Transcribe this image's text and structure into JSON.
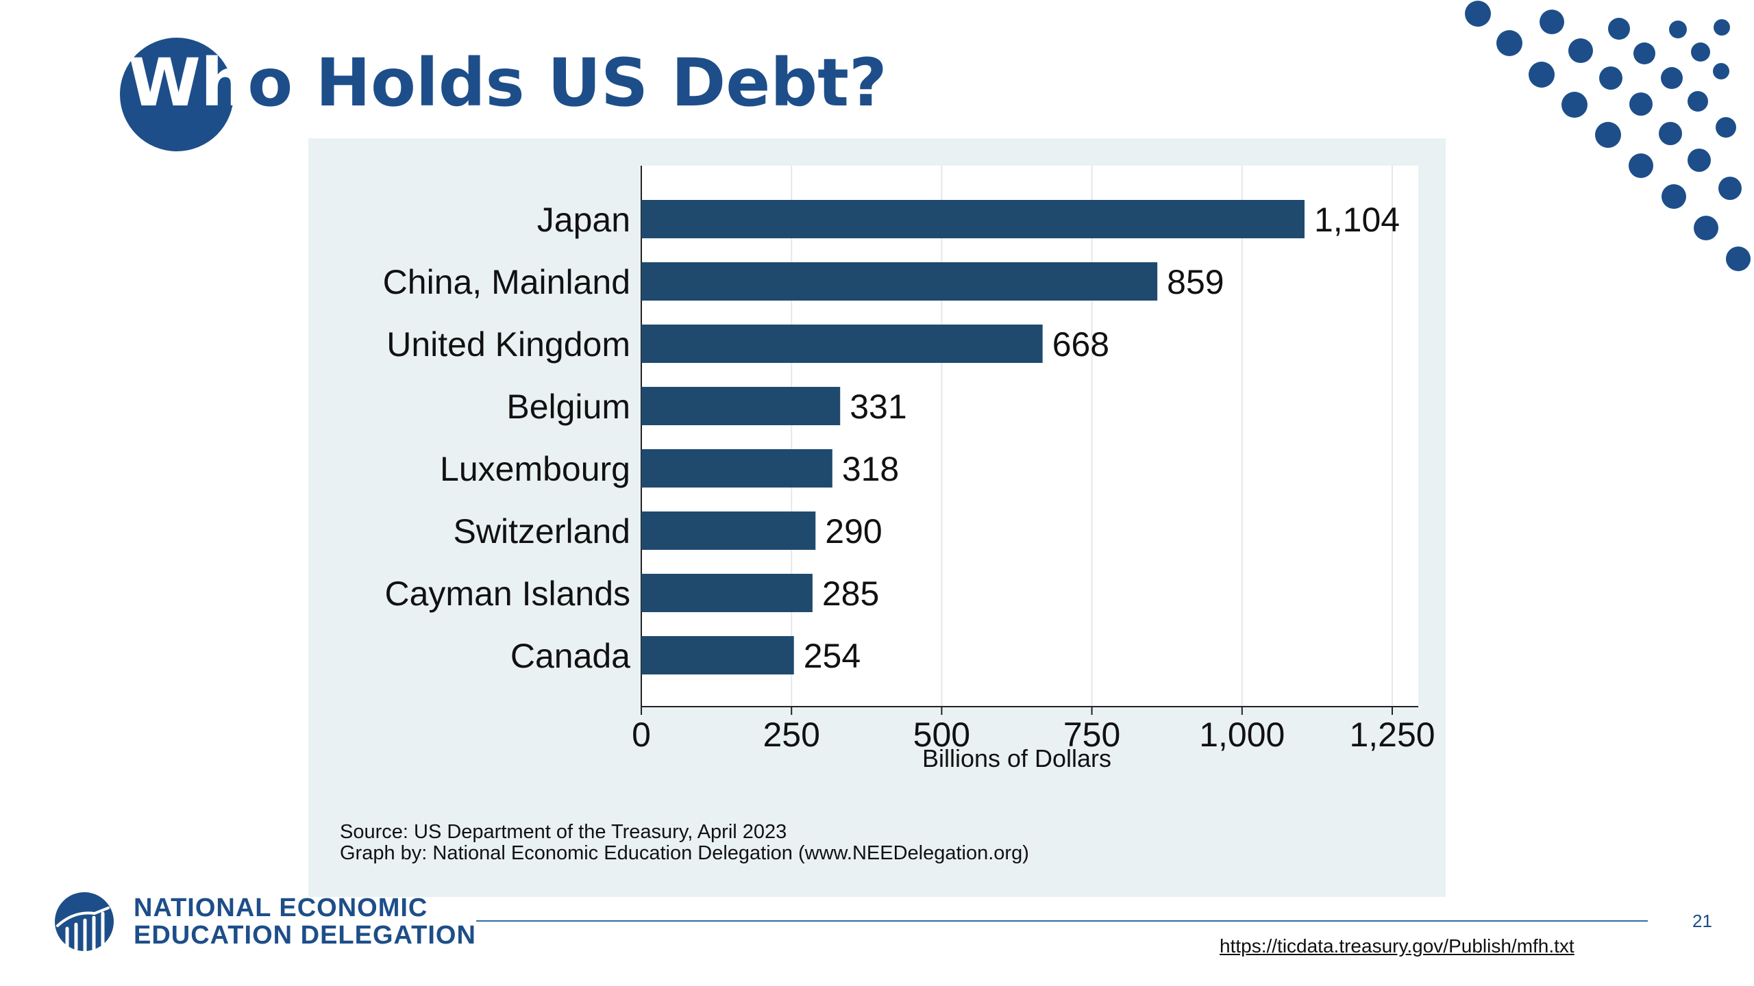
{
  "slide": {
    "title_part1": "Wh",
    "title_part2": "o Holds US Debt?",
    "organization_line1": "NATIONAL ECONOMIC",
    "organization_line2": "EDUCATION DELEGATION",
    "page_number": "21",
    "url": "https://ticdata.treasury.gov/Publish/mfh.txt",
    "source_line1": "Source: US Department of the Treasury, April 2023",
    "source_line2": "Graph by: National Economic Education Delegation (www.NEEDelegation.org)"
  },
  "colors": {
    "brand_blue": "#1d4e89",
    "bar": "#1f4a6e",
    "panel_bg": "#eaf1f3",
    "plot_bg": "#ffffff",
    "grid": "#e3e8ea"
  },
  "chart_data": {
    "type": "bar",
    "orientation": "horizontal",
    "categories": [
      "Japan",
      "China, Mainland",
      "United Kingdom",
      "Belgium",
      "Luxembourg",
      "Switzerland",
      "Cayman Islands",
      "Canada"
    ],
    "values": [
      1104,
      859,
      668,
      331,
      318,
      290,
      285,
      254
    ],
    "value_labels": [
      "1,104",
      "859",
      "668",
      "331",
      "318",
      "290",
      "285",
      "254"
    ],
    "xlabel": "Billions of Dollars",
    "ylabel": "",
    "xlim": [
      0,
      1250
    ],
    "xticks": [
      0,
      250,
      500,
      750,
      1000,
      1250
    ],
    "xtick_labels": [
      "0",
      "250",
      "500",
      "750",
      "1,000",
      "1,250"
    ],
    "grid": "vertical",
    "legend": "none"
  }
}
